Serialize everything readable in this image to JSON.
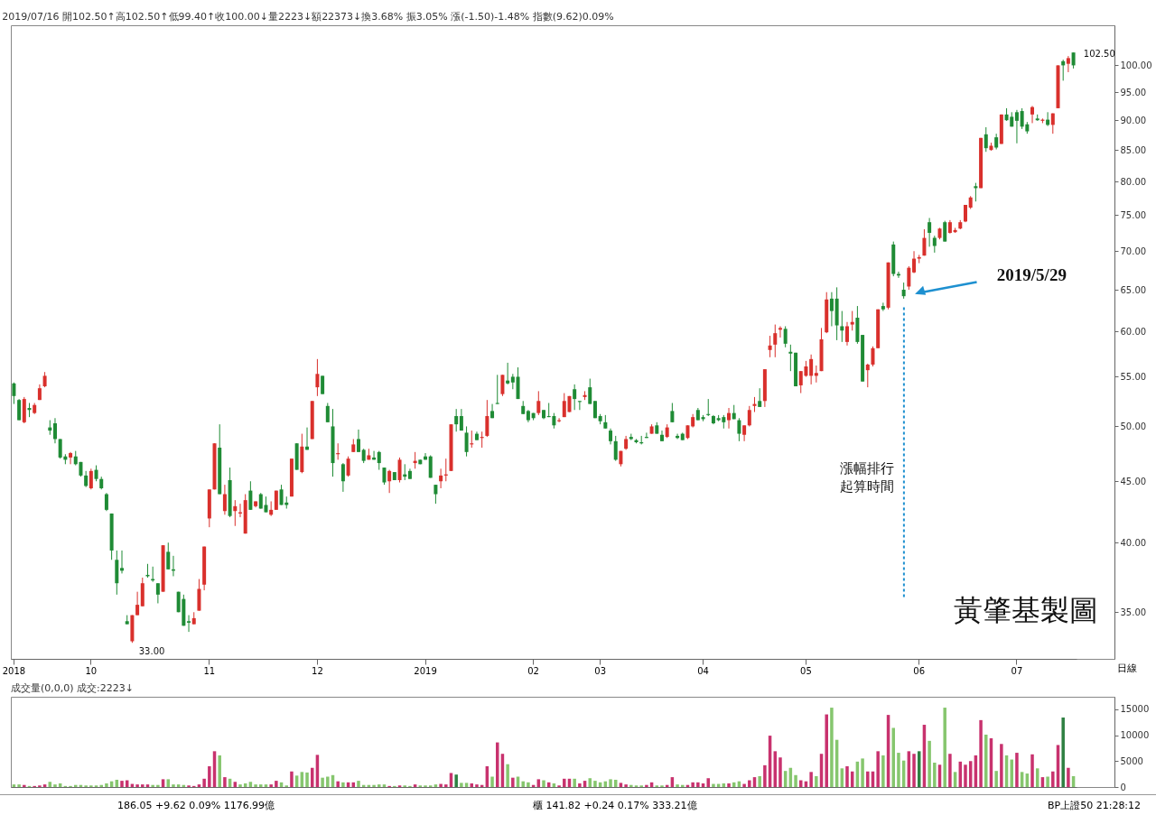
{
  "chart_data": [
    {
      "type": "candlestick",
      "title": "2019/07/16 開102.50↑高102.50↑低99.40↑收100.00↓量2223↓額22373↓換3.68% 振3.05% 漲(-1.50)-1.48% 指數(9.62)0.09%",
      "xlabel": "日線",
      "log": true,
      "categories": [
        "2018",
        null,
        null,
        null,
        null,
        null,
        null,
        null,
        null,
        null,
        null,
        null,
        null,
        null,
        null,
        "10",
        null,
        null,
        null,
        null,
        null,
        null,
        null,
        null,
        null,
        null,
        null,
        null,
        null,
        null,
        null,
        null,
        null,
        null,
        null,
        null,
        null,
        null,
        "11",
        null,
        null,
        null,
        null,
        null,
        null,
        null,
        null,
        null,
        null,
        null,
        null,
        null,
        null,
        null,
        null,
        null,
        null,
        null,
        null,
        "12",
        null,
        null,
        null,
        null,
        null,
        null,
        null,
        null,
        null,
        null,
        null,
        null,
        null,
        null,
        null,
        null,
        null,
        null,
        null,
        null,
        "2019",
        null,
        null,
        null,
        null,
        null,
        null,
        null,
        null,
        null,
        null,
        null,
        null,
        null,
        null,
        null,
        null,
        null,
        null,
        null,
        null,
        "02",
        null,
        null,
        null,
        null,
        null,
        null,
        null,
        null,
        null,
        null,
        null,
        null,
        "03",
        null,
        null,
        null,
        null,
        null,
        null,
        null,
        null,
        null,
        null,
        null,
        null,
        null,
        null,
        null,
        null,
        null,
        null,
        null,
        "04",
        null,
        null,
        null,
        null,
        null,
        null,
        null,
        null,
        null,
        null,
        null,
        null,
        null,
        null,
        null,
        null,
        null,
        null,
        null,
        "05",
        null,
        null,
        null,
        null,
        null,
        null,
        null,
        null,
        null,
        null,
        null,
        null,
        null,
        null,
        null,
        null,
        null,
        null,
        null,
        null,
        null,
        "06",
        null,
        null,
        null,
        null,
        null,
        null,
        null,
        null,
        null,
        null,
        null,
        null,
        null,
        null,
        null,
        null,
        null,
        null,
        "07",
        null,
        null,
        null,
        null,
        null,
        null,
        null,
        null,
        null,
        null,
        null
      ],
      "ohlc": [
        [
          54.3,
          54.4,
          52.2,
          53.0
        ],
        [
          52.6,
          52.7,
          50.6,
          50.6
        ],
        [
          50.4,
          52.9,
          50.3,
          52.7
        ],
        [
          51.8,
          52.3,
          50.9,
          51.6
        ],
        [
          51.3,
          52.3,
          51.2,
          52.1
        ],
        [
          52.6,
          54.2,
          52.6,
          53.8
        ],
        [
          54.0,
          55.5,
          53.9,
          55.1
        ],
        [
          49.9,
          50.6,
          49.2,
          49.6
        ],
        [
          50.3,
          50.8,
          48.4,
          48.8
        ],
        [
          48.8,
          48.8,
          47.0,
          47.1
        ],
        [
          47.2,
          47.4,
          46.5,
          46.9
        ],
        [
          47.1,
          47.6,
          46.5,
          47.5
        ],
        [
          47.2,
          47.7,
          46.4,
          46.5
        ],
        [
          46.7,
          46.7,
          45.4,
          45.5
        ],
        [
          45.5,
          45.9,
          44.5,
          44.6
        ],
        [
          44.4,
          46.1,
          44.3,
          45.9
        ],
        [
          46.0,
          46.4,
          45.0,
          45.2
        ],
        [
          45.2,
          45.4,
          44.3,
          44.4
        ],
        [
          43.9,
          44.0,
          42.5,
          42.6
        ],
        [
          42.3,
          42.3,
          38.7,
          39.4
        ],
        [
          38.7,
          39.4,
          36.2,
          37.0
        ],
        [
          38.1,
          39.4,
          37.7,
          37.9
        ],
        [
          34.4,
          34.8,
          34.2,
          34.2
        ],
        [
          33.1,
          34.8,
          33.0,
          34.8
        ],
        [
          34.8,
          36.4,
          34.8,
          35.5
        ],
        [
          35.4,
          37.4,
          35.4,
          37.0
        ],
        [
          37.6,
          38.4,
          37.4,
          37.5
        ],
        [
          37.3,
          38.2,
          37.1,
          37.2
        ],
        [
          37.0,
          37.0,
          35.6,
          36.2
        ],
        [
          36.4,
          39.8,
          36.4,
          39.8
        ],
        [
          39.3,
          40.0,
          38.0,
          38.0
        ],
        [
          38.0,
          39.0,
          37.5,
          37.9
        ],
        [
          36.4,
          36.4,
          35.0,
          35.0
        ],
        [
          35.9,
          36.2,
          34.1,
          34.1
        ],
        [
          34.4,
          34.8,
          33.7,
          34.3
        ],
        [
          34.2,
          35.0,
          34.2,
          34.6
        ],
        [
          35.1,
          37.3,
          35.1,
          36.6
        ],
        [
          36.9,
          39.7,
          36.5,
          39.7
        ],
        [
          41.9,
          44.3,
          41.2,
          44.3
        ],
        [
          44.3,
          48.4,
          44.3,
          48.4
        ],
        [
          48.0,
          50.2,
          43.9,
          43.9
        ],
        [
          42.5,
          44.7,
          42.2,
          43.9
        ],
        [
          45.1,
          46.2,
          42.0,
          42.1
        ],
        [
          42.5,
          43.4,
          41.3,
          42.9
        ],
        [
          42.3,
          43.1,
          42.0,
          42.4
        ],
        [
          40.7,
          43.9,
          40.7,
          43.4
        ],
        [
          44.2,
          45.0,
          42.6,
          42.6
        ],
        [
          42.9,
          43.3,
          42.8,
          43.3
        ],
        [
          43.9,
          44.0,
          42.7,
          42.7
        ],
        [
          43.0,
          43.7,
          42.4,
          42.4
        ],
        [
          42.2,
          43.3,
          42.1,
          42.6
        ],
        [
          42.6,
          44.2,
          42.6,
          44.2
        ],
        [
          44.3,
          44.7,
          43.0,
          43.0
        ],
        [
          43.2,
          43.7,
          42.7,
          43.0
        ],
        [
          43.7,
          47.0,
          43.7,
          47.0
        ],
        [
          48.4,
          48.4,
          46.0,
          46.0
        ],
        [
          45.8,
          49.3,
          45.7,
          48.1
        ],
        [
          48.1,
          49.9,
          47.8,
          47.8
        ],
        [
          48.8,
          52.5,
          48.8,
          52.5
        ],
        [
          53.9,
          56.9,
          53.0,
          55.3
        ],
        [
          55.1,
          55.1,
          53.2,
          53.2
        ],
        [
          52.0,
          52.3,
          50.4,
          50.4
        ],
        [
          50.0,
          51.7,
          45.4,
          46.6
        ],
        [
          47.4,
          48.4,
          46.9,
          47.5
        ],
        [
          46.5,
          46.6,
          44.1,
          45.0
        ],
        [
          45.5,
          47.2,
          45.4,
          47.0
        ],
        [
          47.6,
          48.8,
          47.6,
          48.3
        ],
        [
          48.8,
          49.7,
          47.6,
          47.6
        ],
        [
          47.8,
          47.9,
          46.6,
          46.8
        ],
        [
          46.9,
          47.9,
          46.9,
          47.3
        ],
        [
          47.1,
          47.7,
          46.9,
          46.9
        ],
        [
          47.6,
          47.7,
          46.0,
          46.6
        ],
        [
          46.2,
          46.2,
          44.7,
          44.9
        ],
        [
          45.0,
          46.0,
          44.0,
          45.9
        ],
        [
          45.8,
          45.8,
          45.1,
          45.1
        ],
        [
          45.1,
          47.1,
          44.9,
          46.9
        ],
        [
          45.6,
          46.5,
          45.1,
          45.4
        ],
        [
          45.9,
          46.1,
          45.2,
          45.2
        ],
        [
          46.6,
          47.6,
          46.1,
          46.8
        ],
        [
          46.9,
          46.9,
          46.5,
          46.5
        ],
        [
          47.2,
          47.5,
          46.9,
          46.9
        ],
        [
          47.2,
          47.3,
          45.3,
          45.3
        ],
        [
          44.7,
          44.7,
          43.1,
          43.9
        ],
        [
          45.0,
          46.1,
          44.4,
          45.5
        ],
        [
          45.5,
          47.0,
          45.0,
          45.6
        ],
        [
          45.9,
          50.2,
          45.9,
          50.2
        ],
        [
          51.0,
          51.7,
          49.5,
          50.2
        ],
        [
          51.0,
          51.7,
          49.6,
          49.6
        ],
        [
          49.4,
          50.0,
          47.2,
          47.6
        ],
        [
          48.3,
          49.6,
          48.0,
          48.4
        ],
        [
          49.3,
          49.5,
          48.7,
          48.7
        ],
        [
          48.9,
          49.5,
          48.0,
          49.0
        ],
        [
          49.1,
          52.6,
          49.0,
          51.0
        ],
        [
          51.5,
          52.2,
          50.8,
          50.8
        ],
        [
          52.3,
          55.2,
          52.2,
          52.2
        ],
        [
          53.2,
          55.2,
          53.0,
          55.2
        ],
        [
          54.6,
          56.5,
          54.2,
          54.3
        ],
        [
          55.0,
          55.3,
          53.7,
          54.4
        ],
        [
          55.0,
          56.0,
          52.7,
          52.7
        ],
        [
          52.0,
          52.5,
          51.2,
          51.2
        ],
        [
          51.5,
          51.6,
          50.4,
          50.6
        ],
        [
          51.3,
          51.3,
          50.6,
          50.8
        ],
        [
          51.3,
          53.5,
          51.1,
          52.5
        ],
        [
          51.6,
          51.6,
          50.7,
          50.8
        ],
        [
          51.0,
          52.3,
          50.9,
          50.9
        ],
        [
          51.0,
          51.3,
          49.8,
          50.1
        ],
        [
          50.5,
          50.8,
          50.4,
          50.6
        ],
        [
          50.9,
          53.3,
          50.9,
          52.5
        ],
        [
          51.4,
          53.0,
          51.4,
          53.0
        ],
        [
          53.7,
          54.2,
          51.6,
          52.7
        ],
        [
          52.5,
          52.5,
          51.6,
          52.4
        ],
        [
          52.9,
          53.5,
          52.6,
          53.1
        ],
        [
          53.9,
          54.8,
          52.2,
          52.2
        ],
        [
          52.5,
          52.5,
          50.8,
          50.8
        ],
        [
          51.0,
          51.2,
          50.2,
          50.5
        ],
        [
          50.4,
          51.1,
          49.8,
          49.8
        ],
        [
          49.6,
          49.8,
          48.3,
          48.6
        ],
        [
          48.6,
          49.1,
          46.8,
          46.9
        ],
        [
          46.5,
          47.7,
          46.3,
          47.7
        ],
        [
          47.9,
          49.1,
          47.8,
          48.8
        ],
        [
          49.0,
          49.3,
          48.7,
          48.8
        ],
        [
          48.7,
          48.8,
          48.4,
          48.5
        ],
        [
          48.5,
          49.1,
          48.3,
          48.4
        ],
        [
          49.0,
          49.4,
          48.9,
          48.9
        ],
        [
          49.3,
          50.2,
          49.3,
          50.0
        ],
        [
          50.1,
          50.4,
          49.3,
          49.3
        ],
        [
          49.2,
          49.6,
          48.6,
          48.6
        ],
        [
          49.0,
          50.2,
          48.9,
          49.9
        ],
        [
          51.5,
          52.3,
          50.4,
          50.4
        ],
        [
          49.1,
          49.3,
          48.8,
          48.9
        ],
        [
          49.3,
          49.4,
          48.7,
          48.7
        ],
        [
          48.9,
          50.1,
          48.8,
          50.1
        ],
        [
          50.0,
          51.2,
          49.9,
          50.9
        ],
        [
          51.6,
          51.8,
          50.6,
          50.6
        ],
        [
          50.9,
          51.1,
          50.5,
          50.7
        ],
        [
          51.2,
          52.7,
          51.0,
          51.1
        ],
        [
          51.0,
          51.1,
          50.2,
          50.3
        ],
        [
          50.8,
          51.1,
          50.5,
          50.6
        ],
        [
          50.9,
          51.1,
          49.8,
          50.4
        ],
        [
          50.6,
          51.8,
          49.8,
          51.3
        ],
        [
          51.3,
          52.1,
          50.7,
          50.7
        ],
        [
          50.6,
          50.8,
          48.6,
          49.3
        ],
        [
          49.2,
          50.1,
          48.6,
          50.1
        ],
        [
          50.1,
          52.0,
          50.0,
          51.6
        ],
        [
          52.0,
          52.9,
          51.4,
          52.2
        ],
        [
          52.5,
          53.8,
          51.9,
          51.9
        ],
        [
          52.5,
          55.8,
          51.9,
          55.8
        ],
        [
          57.9,
          59.5,
          57.1,
          58.4
        ],
        [
          58.5,
          60.8,
          57.1,
          59.8
        ],
        [
          60.2,
          60.6,
          59.3,
          60.4
        ],
        [
          60.3,
          60.6,
          58.2,
          58.6
        ],
        [
          57.7,
          58.5,
          55.6,
          57.5
        ],
        [
          57.6,
          57.6,
          54.0,
          54.0
        ],
        [
          54.1,
          55.6,
          53.3,
          55.6
        ],
        [
          55.1,
          56.7,
          55.0,
          56.1
        ],
        [
          55.1,
          57.4,
          54.2,
          56.9
        ],
        [
          55.1,
          56.2,
          54.4,
          55.4
        ],
        [
          55.6,
          60.4,
          55.6,
          59.1
        ],
        [
          59.9,
          64.7,
          59.8,
          63.8
        ],
        [
          63.9,
          64.7,
          60.6,
          62.4
        ],
        [
          63.9,
          65.3,
          59.0,
          60.7
        ],
        [
          60.6,
          62.4,
          58.8,
          60.1
        ],
        [
          58.8,
          61.1,
          58.4,
          60.6
        ],
        [
          60.8,
          62.4,
          60.1,
          61.1
        ],
        [
          61.6,
          63.0,
          58.6,
          58.8
        ],
        [
          59.6,
          59.6,
          54.5,
          54.5
        ],
        [
          55.7,
          56.4,
          53.9,
          56.3
        ],
        [
          56.3,
          58.3,
          56.1,
          58.1
        ],
        [
          58.1,
          62.6,
          58.1,
          62.6
        ],
        [
          63.0,
          63.4,
          62.4,
          62.6
        ],
        [
          62.8,
          68.5,
          62.6,
          68.5
        ],
        [
          70.9,
          71.3,
          66.7,
          67.0
        ],
        [
          67.0,
          67.3,
          66.5,
          66.8
        ],
        [
          65.0,
          65.9,
          63.9,
          64.2
        ],
        [
          65.4,
          68.0,
          65.0,
          67.8
        ],
        [
          67.2,
          70.0,
          67.1,
          69.0
        ],
        [
          69.0,
          69.5,
          68.4,
          69.2
        ],
        [
          69.4,
          73.0,
          69.4,
          71.8
        ],
        [
          74.0,
          74.6,
          70.6,
          72.5
        ],
        [
          71.8,
          72.1,
          69.8,
          70.7
        ],
        [
          71.8,
          73.2,
          71.6,
          73.1
        ],
        [
          74.0,
          74.2,
          71.3,
          71.3
        ],
        [
          72.5,
          74.3,
          72.4,
          74.0
        ],
        [
          72.6,
          73.2,
          72.5,
          72.9
        ],
        [
          73.1,
          74.3,
          73.0,
          74.0
        ],
        [
          74.1,
          76.5,
          74.0,
          76.5
        ],
        [
          76.1,
          77.8,
          75.9,
          77.6
        ],
        [
          79.3,
          79.8,
          77.0,
          79.0
        ],
        [
          79.0,
          87.0,
          79.0,
          87.0
        ],
        [
          87.6,
          88.8,
          84.7,
          85.3
        ],
        [
          85.0,
          86.2,
          84.9,
          85.7
        ],
        [
          87.1,
          87.7,
          85.1,
          85.4
        ],
        [
          86.0,
          91.0,
          86.0,
          91.0
        ],
        [
          91.0,
          92.1,
          89.9,
          90.0
        ],
        [
          90.6,
          91.4,
          88.9,
          88.9
        ],
        [
          91.4,
          91.8,
          86.1,
          89.9
        ],
        [
          91.6,
          92.1,
          88.5,
          88.9
        ],
        [
          89.3,
          89.7,
          87.7,
          88.1
        ],
        [
          91.0,
          92.5,
          89.5,
          92.3
        ],
        [
          90.3,
          91.0,
          89.9,
          90.0
        ],
        [
          89.9,
          90.3,
          89.5,
          90.1
        ],
        [
          90.1,
          91.4,
          89.0,
          89.2
        ],
        [
          89.2,
          91.2,
          87.7,
          91.2
        ],
        [
          92.1,
          100.0,
          92.1,
          100.0
        ],
        [
          100.8,
          101.1,
          97.1,
          100.0
        ],
        [
          100.3,
          101.8,
          98.7,
          101.4
        ],
        [
          102.5,
          102.5,
          99.4,
          100.0
        ]
      ],
      "colors": [
        "#1f8b35",
        "#1f8b35",
        "#d9302c",
        "#1f8b35",
        "#d9302c",
        "#d9302c",
        "#d9302c",
        "#1f8b35",
        "#1f8b35",
        "#1f8b35",
        "#1f8b35",
        "#d9302c",
        "#1f8b35",
        "#1f8b35",
        "#1f8b35",
        "#d9302c",
        "#1f8b35",
        "#1f8b35",
        "#1f8b35",
        "#1f8b35",
        "#1f8b35",
        "#1f8b35",
        "#1f8b35",
        "#d9302c",
        "#d9302c",
        "#d9302c",
        "#1f8b35",
        "#1f8b35",
        "#1f8b35",
        "#d9302c",
        "#1f8b35",
        "#1f8b35",
        "#1f8b35",
        "#1f8b35",
        "#1f8b35",
        "#d9302c",
        "#d9302c",
        "#d9302c",
        "#d9302c",
        "#d9302c",
        "#1f8b35",
        "#d9302c",
        "#1f8b35",
        "#d9302c",
        "#d9302c",
        "#d9302c",
        "#1f8b35",
        "#d9302c",
        "#1f8b35",
        "#1f8b35",
        "#d9302c",
        "#d9302c",
        "#1f8b35",
        "#1f8b35",
        "#d9302c",
        "#1f8b35",
        "#d9302c",
        "#1f8b35",
        "#d9302c",
        "#d9302c",
        "#1f8b35",
        "#1f8b35",
        "#1f8b35",
        "#d9302c",
        "#1f8b35",
        "#d9302c",
        "#d9302c",
        "#1f8b35",
        "#1f8b35",
        "#d9302c",
        "#1f8b35",
        "#1f8b35",
        "#1f8b35",
        "#d9302c",
        "#1f8b35",
        "#d9302c",
        "#1f8b35",
        "#1f8b35",
        "#d9302c",
        "#1f8b35",
        "#1f8b35",
        "#1f8b35",
        "#1f8b35",
        "#d9302c",
        "#d9302c",
        "#d9302c",
        "#1f8b35",
        "#1f8b35",
        "#1f8b35",
        "#d9302c",
        "#1f8b35",
        "#d9302c",
        "#d9302c",
        "#1f8b35",
        "#1f8b35",
        "#d9302c",
        "#1f8b35",
        "#1f8b35",
        "#1f8b35",
        "#1f8b35",
        "#1f8b35",
        "#1f8b35",
        "#d9302c",
        "#1f8b35",
        "#1f8b35",
        "#1f8b35",
        "#d9302c",
        "#d9302c",
        "#d9302c",
        "#1f8b35",
        "#1f8b35",
        "#d9302c",
        "#1f8b35",
        "#1f8b35",
        "#1f8b35",
        "#1f8b35",
        "#1f8b35",
        "#1f8b35",
        "#d9302c",
        "#d9302c",
        "#1f8b35",
        "#1f8b35",
        "#1f8b35",
        "#1f8b35",
        "#d9302c",
        "#1f8b35",
        "#1f8b35",
        "#d9302c",
        "#1f8b35",
        "#1f8b35",
        "#1f8b35",
        "#d9302c",
        "#d9302c",
        "#1f8b35",
        "#1f8b35",
        "#1f8b35",
        "#1f8b35",
        "#1f8b35",
        "#1f8b35",
        "#d9302c",
        "#1f8b35",
        "#1f8b35",
        "#d9302c",
        "#d9302c",
        "#d9302c",
        "#1f8b35",
        "#d9302c",
        "#d9302c",
        "#d9302c",
        "#d9302c",
        "#1f8b35",
        "#1f8b35",
        "#1f8b35",
        "#d9302c",
        "#d9302c",
        "#d9302c",
        "#d9302c",
        "#d9302c",
        "#d9302c",
        "#1f8b35",
        "#1f8b35",
        "#1f8b35",
        "#d9302c",
        "#d9302c",
        "#1f8b35",
        "#1f8b35",
        "#d9302c",
        "#d9302c",
        "#d9302c",
        "#1f8b35",
        "#d9302c",
        "#1f8b35",
        "#1f8b35",
        "#1f8b35",
        "#d9302c",
        "#d9302c",
        "#d9302c",
        "#d9302c",
        "#1f8b35",
        "#1f8b35",
        "#d9302c",
        "#1f8b35",
        "#d9302c",
        "#d9302c",
        "#d9302c",
        "#d9302c",
        "#d9302c",
        "#1f8b35",
        "#d9302c",
        "#1f8b35",
        "#d9302c",
        "#1f8b35",
        "#d9302c",
        "#1f8b35",
        "#1f8b35",
        "#1f8b35",
        "#1f8b35",
        "#1f8b35",
        "#d9302c",
        "#1f8b35",
        "#d9302c",
        "#1f8b35",
        "#d9302c",
        "#d9302c",
        "#1f8b35",
        "#d9302c",
        "#1f8b35"
      ],
      "ylim": [
        32,
        108
      ],
      "yticks": [
        {
          "value": 35,
          "label": "35.00"
        },
        {
          "value": 40,
          "label": "40.00"
        },
        {
          "value": 45,
          "label": "45.00"
        },
        {
          "value": 50,
          "label": "50.00"
        },
        {
          "value": 55,
          "label": "55.00"
        },
        {
          "value": 60,
          "label": "60.00"
        },
        {
          "value": 65,
          "label": "65.00"
        },
        {
          "value": 70,
          "label": "70.00"
        },
        {
          "value": 75,
          "label": "75.00"
        },
        {
          "value": 80,
          "label": "80.00"
        },
        {
          "value": 85,
          "label": "85.00"
        },
        {
          "value": 90,
          "label": "90.00"
        },
        {
          "value": 95,
          "label": "95.00"
        },
        {
          "value": 100,
          "label": "100.00"
        }
      ],
      "annotations": [
        "2019/5/29",
        "漲幅排行起算時間",
        "黃肇基製圖",
        "33.00",
        "102.50"
      ]
    },
    {
      "type": "bar",
      "title": "成交量(0,0,0) 成交:2223↓",
      "tick_labels": "y",
      "categories": [
        "2018",
        null,
        null,
        null,
        null,
        null,
        null,
        null,
        null,
        null,
        null,
        null,
        null,
        null,
        null,
        "10",
        null,
        null,
        null,
        null,
        null,
        null,
        null,
        null,
        null,
        null,
        null,
        null,
        null,
        null,
        null,
        null,
        null,
        null,
        null,
        null,
        null,
        null,
        "11",
        null,
        null,
        null,
        null,
        null,
        null,
        null,
        null,
        null,
        null,
        null,
        null,
        null,
        null,
        null,
        null,
        null,
        null,
        null,
        null,
        "12",
        null,
        null,
        null,
        null,
        null,
        null,
        null,
        null,
        null,
        null,
        null,
        null,
        null,
        null,
        null,
        null,
        null,
        null,
        null,
        null,
        "2019",
        null,
        null,
        null,
        null,
        null,
        null,
        null,
        null,
        null,
        null,
        null,
        null,
        null,
        null,
        null,
        null,
        null,
        null,
        null,
        null,
        "02",
        null,
        null,
        null,
        null,
        null,
        null,
        null,
        null,
        null,
        null,
        null,
        null,
        "03",
        null,
        null,
        null,
        null,
        null,
        null,
        null,
        null,
        null,
        null,
        null,
        null,
        null,
        null,
        null,
        null,
        null,
        null,
        null,
        "04",
        null,
        null,
        null,
        null,
        null,
        null,
        null,
        null,
        null,
        null,
        null,
        null,
        null,
        null,
        null,
        null,
        null,
        null,
        null,
        "05",
        null,
        null,
        null,
        null,
        null,
        null,
        null,
        null,
        null,
        null,
        null,
        null,
        null,
        null,
        null,
        null,
        null,
        null,
        null,
        null,
        null,
        "06",
        null,
        null,
        null,
        null,
        null,
        null,
        null,
        null,
        null,
        null,
        null,
        null,
        null,
        null,
        null,
        null,
        null,
        null,
        "07",
        null,
        null,
        null,
        null,
        null,
        null,
        null,
        null,
        null,
        null,
        null
      ],
      "values": [
        500,
        500,
        400,
        200,
        200,
        300,
        500,
        1000,
        500,
        700,
        200,
        200,
        400,
        400,
        300,
        300,
        300,
        400,
        700,
        1100,
        1400,
        1200,
        1300,
        600,
        500,
        500,
        500,
        400,
        400,
        1500,
        1500,
        500,
        500,
        400,
        300,
        200,
        500,
        1600,
        4000,
        6900,
        6100,
        1900,
        1600,
        1000,
        500,
        700,
        1000,
        500,
        500,
        500,
        500,
        1200,
        900,
        300,
        3000,
        2200,
        2900,
        2800,
        3700,
        6200,
        1800,
        2000,
        2300,
        1100,
        900,
        900,
        900,
        1200,
        400,
        400,
        400,
        500,
        500,
        200,
        200,
        300,
        300,
        200,
        500,
        300,
        300,
        300,
        500,
        600,
        500,
        2700,
        2400,
        800,
        800,
        700,
        500,
        400,
        4000,
        2000,
        8600,
        6400,
        4400,
        1800,
        2000,
        1100,
        900,
        400,
        1500,
        1300,
        900,
        700,
        300,
        1600,
        1600,
        1600,
        700,
        1200,
        1700,
        1200,
        900,
        1100,
        1500,
        1400,
        800,
        500,
        400,
        300,
        300,
        400,
        900,
        300,
        300,
        400,
        1900,
        500,
        400,
        400,
        900,
        900,
        700,
        1700,
        600,
        600,
        700,
        700,
        900,
        1100,
        600,
        1300,
        1900,
        2100,
        4200,
        9900,
        6900,
        5700,
        3100,
        3700,
        2300,
        1300,
        1100,
        2900,
        2100,
        6400,
        14000,
        15300,
        9100,
        3600,
        4000,
        3000,
        4900,
        5500,
        3000,
        3000,
        6900,
        6100,
        13900,
        11400,
        6600,
        5100,
        6900,
        6400,
        6900,
        12000,
        8900,
        4700,
        4300,
        15300,
        6400,
        2900,
        4900,
        4300,
        5000,
        6100,
        12900,
        10100,
        9400,
        3100,
        8300,
        6100,
        5300,
        6600,
        2900,
        2600,
        6300,
        3600,
        1900,
        2000,
        3000,
        8100,
        13400,
        3700,
        2100
      ],
      "colors": [
        "#86c66e",
        "#86c66e",
        "#c8326e",
        "#86c66e",
        "#c8326e",
        "#c8326e",
        "#c8326e",
        "#86c66e",
        "#86c66e",
        "#86c66e",
        "#86c66e",
        "#86c66e",
        "#86c66e",
        "#86c66e",
        "#86c66e",
        "#86c66e",
        "#86c66e",
        "#86c66e",
        "#86c66e",
        "#86c66e",
        "#86c66e",
        "#c8326e",
        "#c8326e",
        "#c8326e",
        "#c8326e",
        "#c8326e",
        "#c8326e",
        "#86c66e",
        "#86c66e",
        "#c8326e",
        "#86c66e",
        "#86c66e",
        "#86c66e",
        "#86c66e",
        "#c8326e",
        "#c8326e",
        "#c8326e",
        "#c8326e",
        "#c8326e",
        "#c8326e",
        "#86c66e",
        "#c8326e",
        "#86c66e",
        "#c8326e",
        "#86c66e",
        "#86c66e",
        "#86c66e",
        "#86c66e",
        "#86c66e",
        "#86c66e",
        "#c8326e",
        "#c8326e",
        "#86c66e",
        "#86c66e",
        "#c8326e",
        "#86c66e",
        "#86c66e",
        "#86c66e",
        "#c8326e",
        "#c8326e",
        "#86c66e",
        "#86c66e",
        "#86c66e",
        "#c8326e",
        "#86c66e",
        "#c8326e",
        "#c8326e",
        "#86c66e",
        "#86c66e",
        "#86c66e",
        "#86c66e",
        "#86c66e",
        "#86c66e",
        "#c8326e",
        "#86c66e",
        "#c8326e",
        "#86c66e",
        "#86c66e",
        "#c8326e",
        "#86c66e",
        "#86c66e",
        "#86c66e",
        "#86c66e",
        "#c8326e",
        "#c8326e",
        "#c8326e",
        "#2e8042",
        "#86c66e",
        "#86c66e",
        "#c8326e",
        "#c8326e",
        "#c8326e",
        "#c8326e",
        "#86c66e",
        "#c8326e",
        "#c8326e",
        "#86c66e",
        "#c8326e",
        "#86c66e",
        "#86c66e",
        "#86c66e",
        "#c8326e",
        "#c8326e",
        "#86c66e",
        "#c8326e",
        "#86c66e",
        "#c8326e",
        "#c8326e",
        "#c8326e",
        "#86c66e",
        "#c8326e",
        "#c8326e",
        "#86c66e",
        "#86c66e",
        "#86c66e",
        "#86c66e",
        "#86c66e",
        "#86c66e",
        "#c8326e",
        "#c8326e",
        "#86c66e",
        "#86c66e",
        "#86c66e",
        "#c8326e",
        "#c8326e",
        "#86c66e",
        "#86c66e",
        "#c8326e",
        "#c8326e",
        "#86c66e",
        "#86c66e",
        "#c8326e",
        "#c8326e",
        "#c8326e",
        "#c8326e",
        "#c8326e",
        "#86c66e",
        "#86c66e",
        "#86c66e",
        "#c8326e",
        "#86c66e",
        "#86c66e",
        "#c8326e",
        "#c8326e",
        "#c8326e",
        "#86c66e",
        "#c8326e",
        "#c8326e",
        "#c8326e",
        "#c8326e",
        "#86c66e",
        "#86c66e",
        "#86c66e",
        "#c8326e",
        "#c8326e",
        "#c8326e",
        "#86c66e",
        "#c8326e",
        "#c8326e",
        "#86c66e",
        "#86c66e",
        "#86c66e",
        "#c8326e",
        "#c8326e",
        "#86c66e",
        "#86c66e",
        "#c8326e",
        "#c8326e",
        "#c8326e",
        "#86c66e",
        "#c8326e",
        "#86c66e",
        "#86c66e",
        "#86c66e",
        "#c8326e",
        "#c8326e",
        "#2e8042",
        "#c8326e",
        "#86c66e",
        "#86c66e",
        "#c8326e",
        "#86c66e",
        "#c8326e",
        "#86c66e",
        "#c8326e",
        "#c8326e",
        "#c8326e",
        "#c8326e",
        "#c8326e",
        "#86c66e",
        "#c8326e",
        "#86c66e",
        "#c8326e",
        "#86c66e",
        "#86c66e",
        "#c8326e",
        "#86c66e",
        "#86c66e",
        "#c8326e",
        "#86c66e",
        "#c8326e",
        "#86c66e",
        "#c8326e",
        "#c8326e",
        "#2e8042",
        "#c8326e",
        "#86c66e"
      ],
      "ylim": [
        0,
        17400
      ],
      "yticks": [
        0,
        5000,
        10000,
        15000
      ],
      "annotations": [
        "186.05 +9.62 0.09% 1176.99億",
        "櫃 141.82 +0.24 0.17% 333.21億",
        "BP上證50 21:28:12"
      ]
    }
  ]
}
